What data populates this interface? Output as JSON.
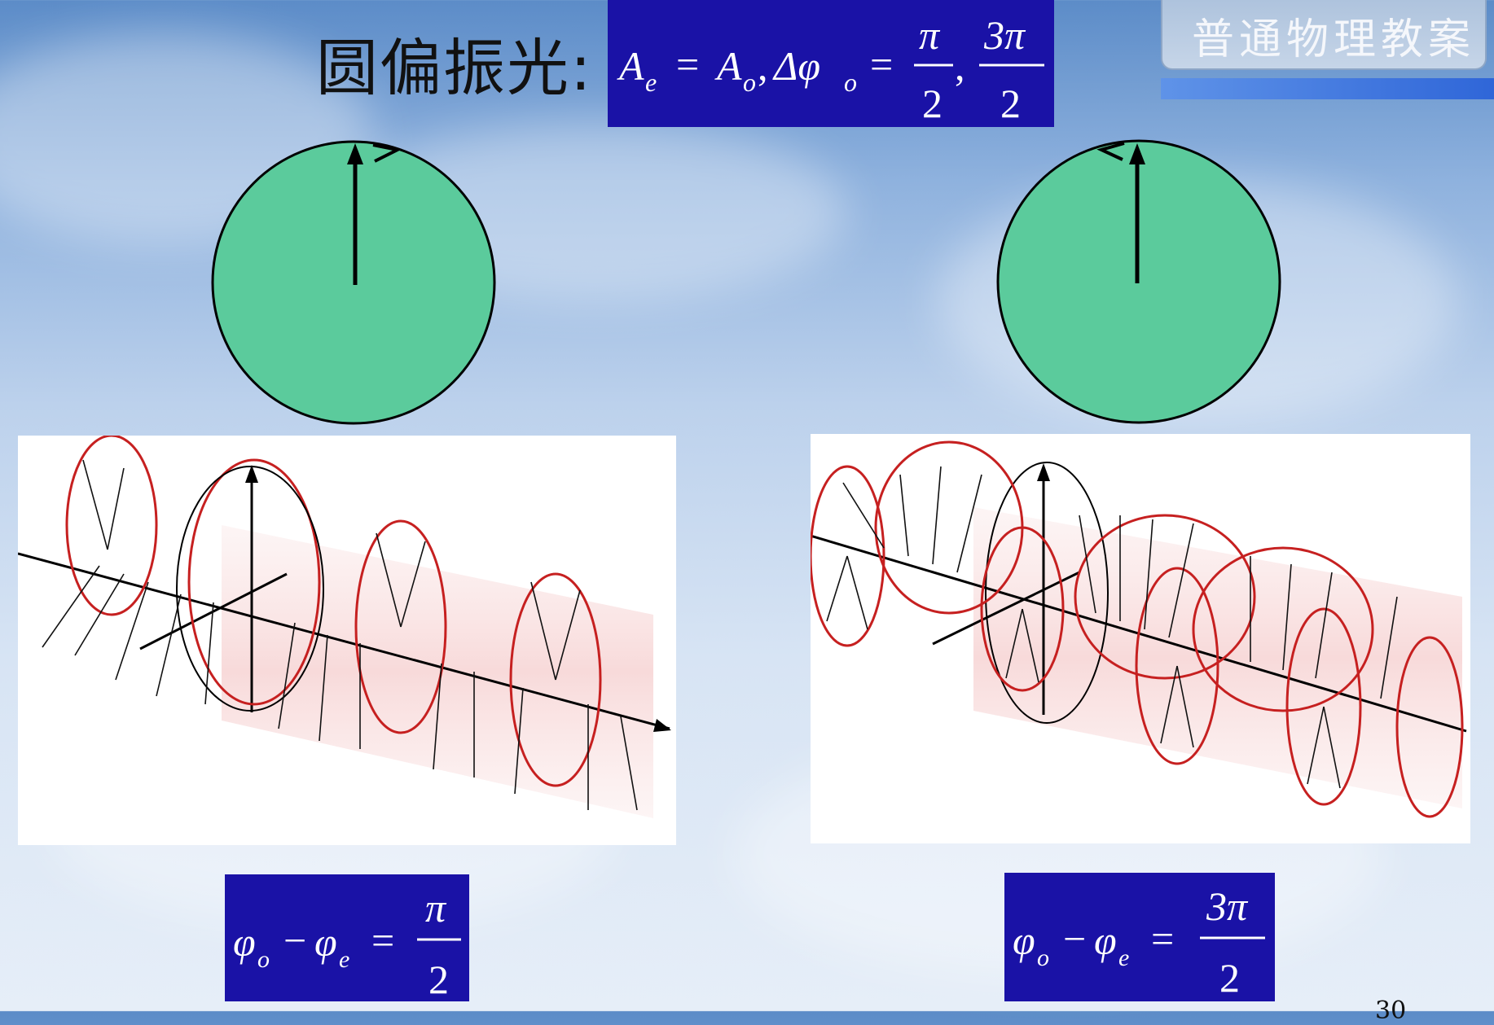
{
  "title": "圆偏振光:",
  "banner": "普通物理教案",
  "page_number": "30",
  "main_equation": {
    "A_e": "A",
    "sub_e": "e",
    "equals": "=",
    "A_o": "A",
    "sub_o": "o",
    "comma": ",",
    "delta_phi": "Δφ",
    "equals2": "=",
    "frac1_num": "π",
    "frac1_den": "2",
    "comma2": ",",
    "frac2_num": "3π",
    "frac2_den": "2"
  },
  "left_equation": {
    "phi_o": "φ",
    "sub_o": "o",
    "minus": "−",
    "phi_e": "φ",
    "sub_e": "e",
    "equals": "=",
    "num": "π",
    "den": "2"
  },
  "right_equation": {
    "phi_o": "φ",
    "sub_o": "o",
    "minus": "−",
    "phi_e": "φ",
    "sub_e": "e",
    "equals": "=",
    "num": "3π",
    "den": "2"
  },
  "colors": {
    "circle_fill": "#5bcb9c",
    "equation_box": "#1a12a6",
    "helix": "#c62020"
  }
}
